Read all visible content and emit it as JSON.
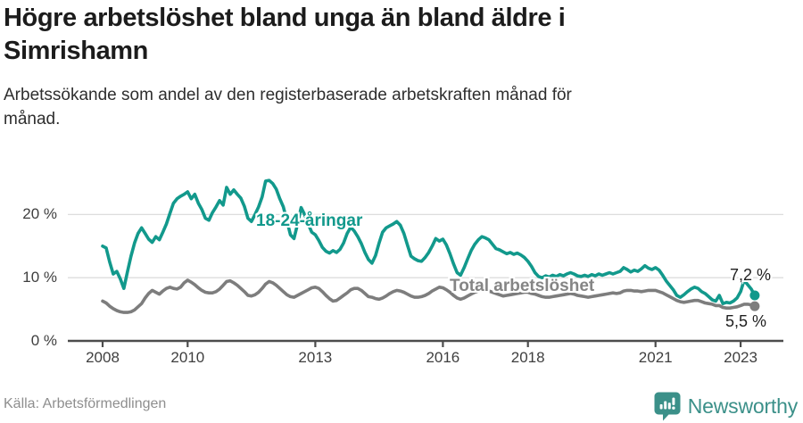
{
  "header": {
    "title_lines": [
      "Högre arbetslöshet bland unga än bland äldre i",
      "Simrishamn"
    ],
    "subtitle_lines": [
      "Arbetssökande som andel av den registerbaserade arbetskraften månad för",
      "månad."
    ]
  },
  "footer": {
    "source": "Källa: Arbetsförmedlingen",
    "brand": "Newsworthy",
    "brand_icon": "newsworthy-chart-bubble-icon",
    "brand_color": "#3B9089"
  },
  "chart_data": {
    "type": "line",
    "unit": "%",
    "x_start": "2008-01",
    "x_end": "2023-05",
    "x_ticks": [
      2008,
      2010,
      2013,
      2016,
      2018,
      2021,
      2023
    ],
    "y_ticks": [
      0,
      10,
      20
    ],
    "y_tick_labels": [
      "0 %",
      "10 %",
      "20 %"
    ],
    "ylim": [
      0,
      26
    ],
    "grid": "horizontal",
    "legend": "inline-labels",
    "colors": {
      "grid": "#dddddd",
      "axis": "#4c4c4c"
    },
    "series": [
      {
        "name": "Total arbetslöshet",
        "color": "#7d7d7d",
        "end_label": "5,5 %",
        "end_value": 5.5,
        "values": [
          6.3,
          6.0,
          5.5,
          5.1,
          4.8,
          4.6,
          4.5,
          4.5,
          4.6,
          4.9,
          5.4,
          5.9,
          6.8,
          7.5,
          8.0,
          7.7,
          7.4,
          7.9,
          8.3,
          8.5,
          8.3,
          8.2,
          8.5,
          9.2,
          9.6,
          9.3,
          8.9,
          8.4,
          8.0,
          7.7,
          7.6,
          7.6,
          7.8,
          8.2,
          8.8,
          9.4,
          9.5,
          9.2,
          8.8,
          8.3,
          7.8,
          7.2,
          7.1,
          7.3,
          7.7,
          8.3,
          9.0,
          9.4,
          9.2,
          8.8,
          8.3,
          7.8,
          7.3,
          7.0,
          6.9,
          7.2,
          7.5,
          7.8,
          8.1,
          8.4,
          8.5,
          8.3,
          7.8,
          7.2,
          6.7,
          6.3,
          6.4,
          6.8,
          7.2,
          7.6,
          8.1,
          8.3,
          8.3,
          8.0,
          7.5,
          7.0,
          6.9,
          6.7,
          6.6,
          6.8,
          7.1,
          7.5,
          7.8,
          8.0,
          7.9,
          7.7,
          7.4,
          7.1,
          6.9,
          6.9,
          7.0,
          7.2,
          7.5,
          7.9,
          8.2,
          8.5,
          8.4,
          8.1,
          7.7,
          7.2,
          6.8,
          6.6,
          6.8,
          7.1,
          7.4,
          7.7,
          7.9,
          8.1,
          8.0,
          7.9,
          7.7,
          7.5,
          7.3,
          7.1,
          7.2,
          7.3,
          7.4,
          7.5,
          7.6,
          7.7,
          7.7,
          7.5,
          7.4,
          7.2,
          7.0,
          6.9,
          6.9,
          7.0,
          7.1,
          7.2,
          7.3,
          7.4,
          7.5,
          7.4,
          7.2,
          7.1,
          7.0,
          6.9,
          7.0,
          7.1,
          7.2,
          7.3,
          7.4,
          7.5,
          7.6,
          7.5,
          7.6,
          7.9,
          8.0,
          8.0,
          7.9,
          7.9,
          7.8,
          7.9,
          8.0,
          8.0,
          8.0,
          7.8,
          7.6,
          7.3,
          7.0,
          6.7,
          6.4,
          6.2,
          6.1,
          6.2,
          6.3,
          6.4,
          6.4,
          6.2,
          6.0,
          5.9,
          5.8,
          5.6,
          5.6,
          5.3,
          5.2,
          5.2,
          5.3,
          5.4,
          5.6,
          5.8,
          5.8,
          5.7,
          5.5
        ]
      },
      {
        "name": "18-24-åringar",
        "color": "#12998C",
        "end_label": "7,2 %",
        "end_value": 7.2,
        "values": [
          15.0,
          14.7,
          12.5,
          10.6,
          11.0,
          9.8,
          8.3,
          10.9,
          13.4,
          15.5,
          17.0,
          17.9,
          17.0,
          16.1,
          15.6,
          16.5,
          16.0,
          17.2,
          18.5,
          20.2,
          21.8,
          22.5,
          22.9,
          23.2,
          23.6,
          22.5,
          23.2,
          21.8,
          20.8,
          19.4,
          19.1,
          20.3,
          21.2,
          22.2,
          21.5,
          24.3,
          23.2,
          23.9,
          23.2,
          22.6,
          21.3,
          19.4,
          18.9,
          20.0,
          21.2,
          22.8,
          25.3,
          25.4,
          24.9,
          24.0,
          22.5,
          21.2,
          19.0,
          16.8,
          16.2,
          18.5,
          21.1,
          20.0,
          18.5,
          17.2,
          16.8,
          15.9,
          14.8,
          14.2,
          13.9,
          14.3,
          14.0,
          14.5,
          15.5,
          17.0,
          18.0,
          17.4,
          16.5,
          15.4,
          14.0,
          12.9,
          12.3,
          13.5,
          15.5,
          17.2,
          17.9,
          18.2,
          18.5,
          18.9,
          18.3,
          17.0,
          15.2,
          13.4,
          13.0,
          12.7,
          12.6,
          13.2,
          14.0,
          15.0,
          16.2,
          15.8,
          16.1,
          15.2,
          13.8,
          12.2,
          10.8,
          10.4,
          11.6,
          13.0,
          14.3,
          15.3,
          16.0,
          16.5,
          16.3,
          16.0,
          15.3,
          14.6,
          14.4,
          14.1,
          13.8,
          14.0,
          13.7,
          13.9,
          13.6,
          13.2,
          12.6,
          11.8,
          10.8,
          10.2,
          10.0,
          10.3,
          10.1,
          10.4,
          10.2,
          10.5,
          10.3,
          10.6,
          10.8,
          10.6,
          10.3,
          10.2,
          10.4,
          10.2,
          10.5,
          10.3,
          10.6,
          10.4,
          10.6,
          10.8,
          10.6,
          10.8,
          11.0,
          11.6,
          11.3,
          10.9,
          11.2,
          11.0,
          11.4,
          11.9,
          11.5,
          11.3,
          11.6,
          11.2,
          10.4,
          9.5,
          8.8,
          8.1,
          7.2,
          6.9,
          7.3,
          7.8,
          8.2,
          8.5,
          8.3,
          7.8,
          7.5,
          7.0,
          6.5,
          6.3,
          7.2,
          5.9,
          6.1,
          6.0,
          6.3,
          6.8,
          7.8,
          9.6,
          8.9,
          8.2,
          7.2
        ]
      }
    ]
  }
}
